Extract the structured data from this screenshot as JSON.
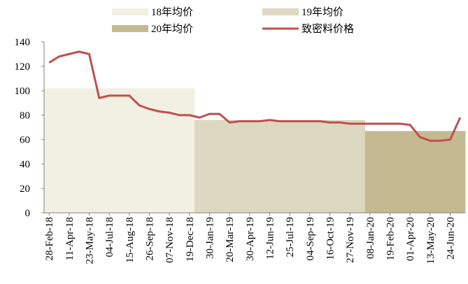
{
  "chart_data": {
    "type": "combo",
    "categories": [
      "28-Feb-18",
      null,
      "11-Apr-18",
      null,
      "23-May-18",
      null,
      "04-Jul-18",
      null,
      "15-Aug-18",
      null,
      "26-Sep-18",
      null,
      "07-Nov-18",
      null,
      "19-Dec-18",
      null,
      "30-Jan-19",
      null,
      "20-Mar-19",
      null,
      "30-Apr-19",
      null,
      "12-Jun-19",
      null,
      "25-Jul-19",
      null,
      "04-Sep-19",
      null,
      "16-Oct-19",
      null,
      "27-Nov-19",
      null,
      "08-Jan-20",
      null,
      "19-Feb-20",
      null,
      "01-Apr-20",
      null,
      "13-May-20",
      null,
      "24-Jun-20",
      null
    ],
    "series": [
      {
        "name": "18年均价",
        "type": "bar",
        "color": "#f2f0e2",
        "values": [
          102,
          102,
          102,
          102,
          102,
          102,
          102,
          102,
          102,
          102,
          102,
          102,
          102,
          102,
          102,
          null,
          null,
          null,
          null,
          null,
          null,
          null,
          null,
          null,
          null,
          null,
          null,
          null,
          null,
          null,
          null,
          null,
          null,
          null,
          null,
          null,
          null,
          null,
          null,
          null,
          null,
          null
        ]
      },
      {
        "name": "19年均价",
        "type": "bar",
        "color": "#ddd8c1",
        "values": [
          null,
          null,
          null,
          null,
          null,
          null,
          null,
          null,
          null,
          null,
          null,
          null,
          null,
          null,
          null,
          76,
          76,
          76,
          76,
          76,
          76,
          76,
          76,
          76,
          76,
          76,
          76,
          76,
          76,
          76,
          76,
          76,
          null,
          null,
          null,
          null,
          null,
          null,
          null,
          null,
          null,
          null
        ]
      },
      {
        "name": "20年均价",
        "type": "bar",
        "color": "#c4b991",
        "values": [
          null,
          null,
          null,
          null,
          null,
          null,
          null,
          null,
          null,
          null,
          null,
          null,
          null,
          null,
          null,
          null,
          null,
          null,
          null,
          null,
          null,
          null,
          null,
          null,
          null,
          null,
          null,
          null,
          null,
          null,
          null,
          null,
          67,
          67,
          67,
          67,
          67,
          67,
          67,
          67,
          67,
          67
        ]
      },
      {
        "name": "致密料价格",
        "type": "line",
        "color": "#c0504d",
        "values": [
          123,
          128,
          130,
          132,
          130,
          94,
          96,
          96,
          96,
          88,
          85,
          83,
          82,
          80,
          80,
          78,
          81,
          81,
          74,
          75,
          75,
          75,
          76,
          75,
          75,
          75,
          75,
          75,
          74,
          74,
          73,
          73,
          73,
          73,
          73,
          73,
          72,
          62,
          59,
          59,
          60,
          78
        ]
      }
    ],
    "ylim": [
      0,
      140
    ],
    "yticks": [
      0,
      20,
      40,
      60,
      80,
      100,
      120,
      140
    ]
  }
}
